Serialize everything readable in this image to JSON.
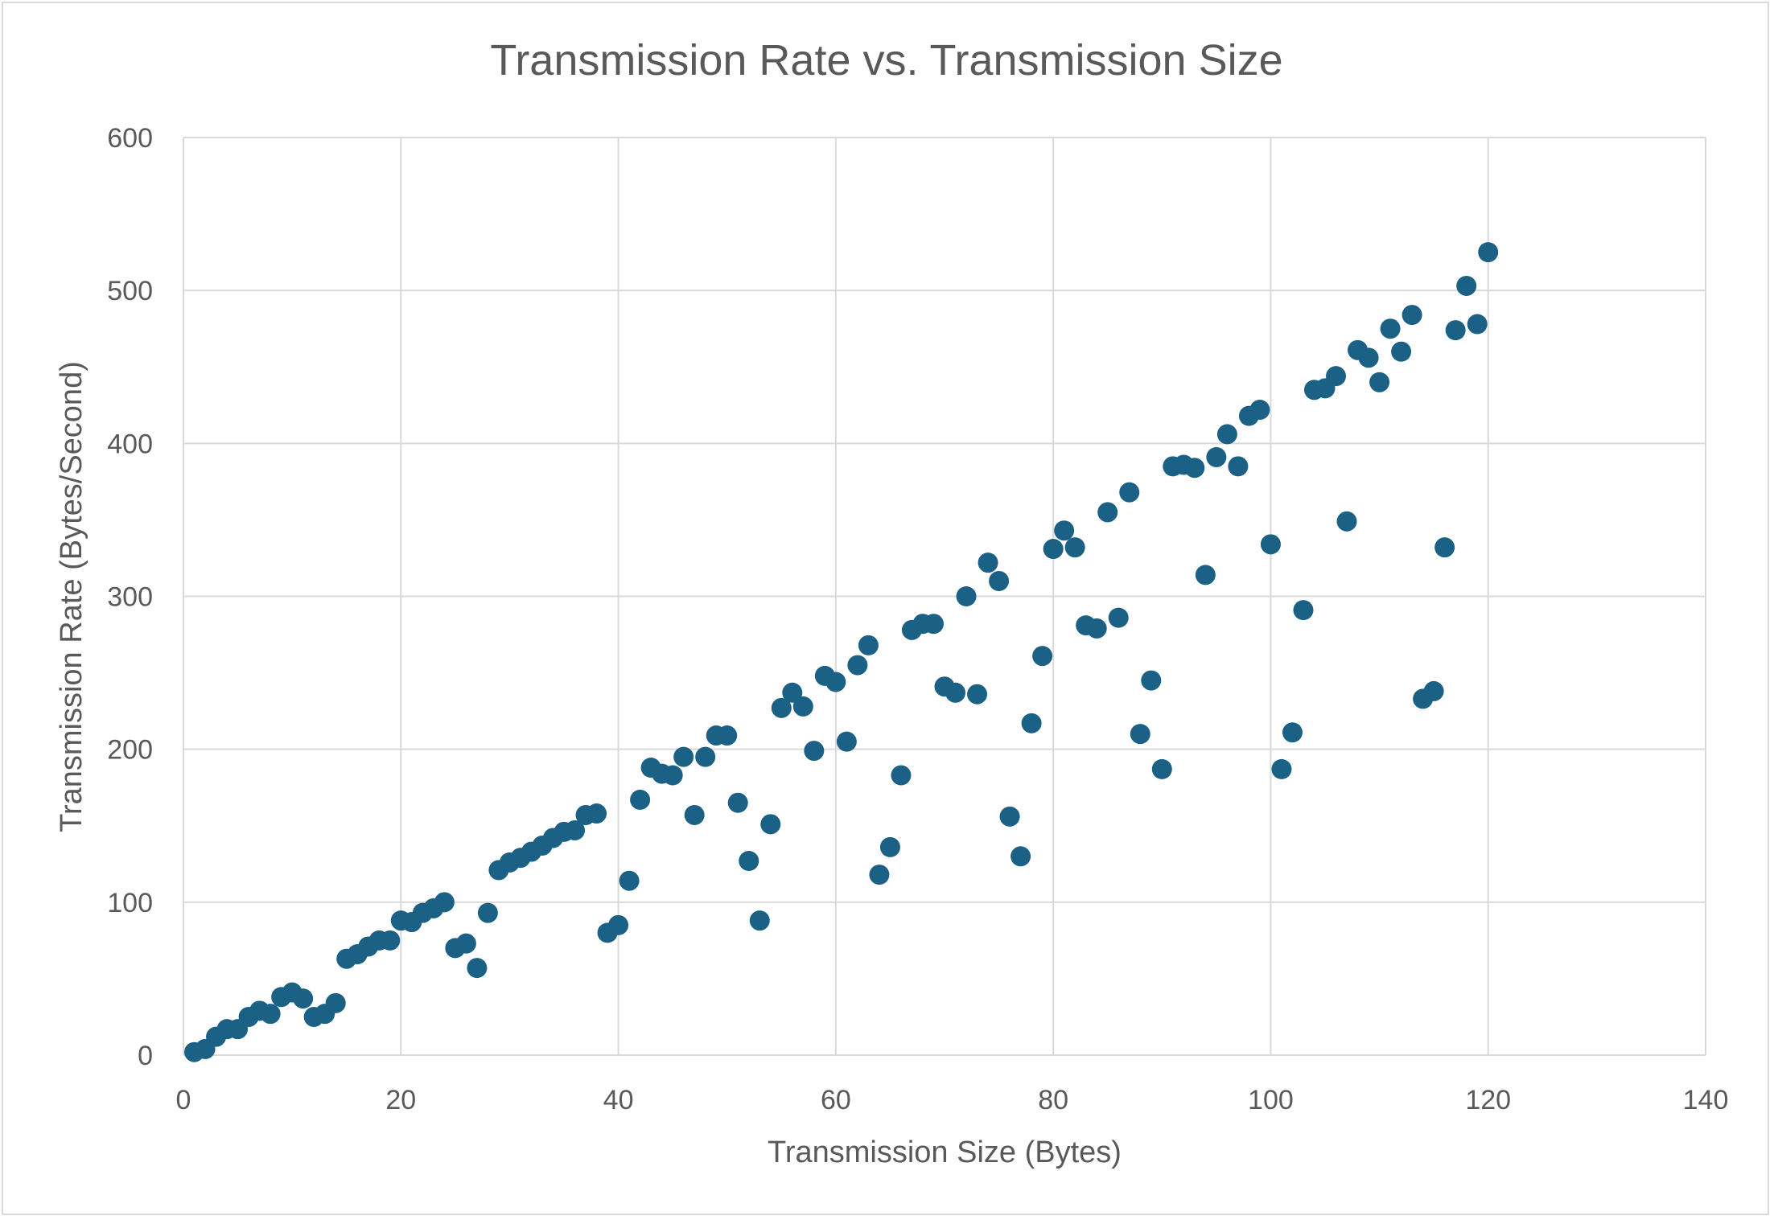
{
  "chart_data": {
    "type": "scatter",
    "title": "Transmission Rate vs. Transmission Size",
    "xlabel": "Transmission Size (Bytes)",
    "ylabel": "Transmission Rate (Bytes/Second)",
    "xlim": [
      0,
      140
    ],
    "ylim": [
      0,
      600
    ],
    "x_ticks": [
      0,
      20,
      40,
      60,
      80,
      100,
      120,
      140
    ],
    "y_ticks": [
      0,
      100,
      200,
      300,
      400,
      500,
      600
    ],
    "grid": true,
    "legend": "none",
    "marker_color": "#1b6185",
    "series": [
      {
        "points": [
          [
            1,
            2
          ],
          [
            2,
            4
          ],
          [
            3,
            12
          ],
          [
            4,
            17
          ],
          [
            5,
            17
          ],
          [
            6,
            25
          ],
          [
            7,
            29
          ],
          [
            8,
            27
          ],
          [
            9,
            38
          ],
          [
            10,
            41
          ],
          [
            11,
            37
          ],
          [
            12,
            25
          ],
          [
            13,
            27
          ],
          [
            14,
            34
          ],
          [
            15,
            63
          ],
          [
            16,
            66
          ],
          [
            17,
            71
          ],
          [
            18,
            75
          ],
          [
            19,
            75
          ],
          [
            20,
            88
          ],
          [
            21,
            87
          ],
          [
            22,
            93
          ],
          [
            23,
            96
          ],
          [
            24,
            100
          ],
          [
            25,
            70
          ],
          [
            26,
            73
          ],
          [
            27,
            57
          ],
          [
            28,
            93
          ],
          [
            29,
            121
          ],
          [
            30,
            126
          ],
          [
            31,
            129
          ],
          [
            32,
            133
          ],
          [
            33,
            137
          ],
          [
            34,
            142
          ],
          [
            35,
            146
          ],
          [
            36,
            147
          ],
          [
            37,
            157
          ],
          [
            38,
            158
          ],
          [
            39,
            80
          ],
          [
            40,
            85
          ],
          [
            41,
            114
          ],
          [
            42,
            167
          ],
          [
            43,
            188
          ],
          [
            44,
            184
          ],
          [
            45,
            183
          ],
          [
            46,
            195
          ],
          [
            47,
            157
          ],
          [
            48,
            195
          ],
          [
            49,
            209
          ],
          [
            50,
            209
          ],
          [
            51,
            165
          ],
          [
            52,
            127
          ],
          [
            53,
            88
          ],
          [
            54,
            151
          ],
          [
            55,
            227
          ],
          [
            56,
            237
          ],
          [
            57,
            228
          ],
          [
            58,
            199
          ],
          [
            59,
            248
          ],
          [
            60,
            244
          ],
          [
            61,
            205
          ],
          [
            62,
            255
          ],
          [
            63,
            268
          ],
          [
            64,
            118
          ],
          [
            65,
            136
          ],
          [
            66,
            183
          ],
          [
            67,
            278
          ],
          [
            68,
            282
          ],
          [
            69,
            282
          ],
          [
            70,
            241
          ],
          [
            71,
            237
          ],
          [
            72,
            300
          ],
          [
            73,
            236
          ],
          [
            74,
            322
          ],
          [
            75,
            310
          ],
          [
            76,
            156
          ],
          [
            77,
            130
          ],
          [
            78,
            217
          ],
          [
            79,
            261
          ],
          [
            80,
            331
          ],
          [
            81,
            343
          ],
          [
            82,
            332
          ],
          [
            83,
            281
          ],
          [
            84,
            279
          ],
          [
            85,
            355
          ],
          [
            86,
            286
          ],
          [
            87,
            368
          ],
          [
            88,
            210
          ],
          [
            89,
            245
          ],
          [
            90,
            187
          ],
          [
            91,
            385
          ],
          [
            92,
            386
          ],
          [
            93,
            384
          ],
          [
            94,
            314
          ],
          [
            95,
            391
          ],
          [
            96,
            406
          ],
          [
            97,
            385
          ],
          [
            98,
            418
          ],
          [
            99,
            422
          ],
          [
            100,
            334
          ],
          [
            101,
            187
          ],
          [
            102,
            211
          ],
          [
            103,
            291
          ],
          [
            104,
            435
          ],
          [
            105,
            436
          ],
          [
            106,
            444
          ],
          [
            107,
            349
          ],
          [
            108,
            461
          ],
          [
            109,
            456
          ],
          [
            110,
            440
          ],
          [
            111,
            475
          ],
          [
            112,
            460
          ],
          [
            113,
            484
          ],
          [
            114,
            233
          ],
          [
            115,
            238
          ],
          [
            116,
            332
          ],
          [
            117,
            474
          ],
          [
            118,
            503
          ],
          [
            119,
            478
          ],
          [
            120,
            525
          ]
        ]
      }
    ]
  }
}
